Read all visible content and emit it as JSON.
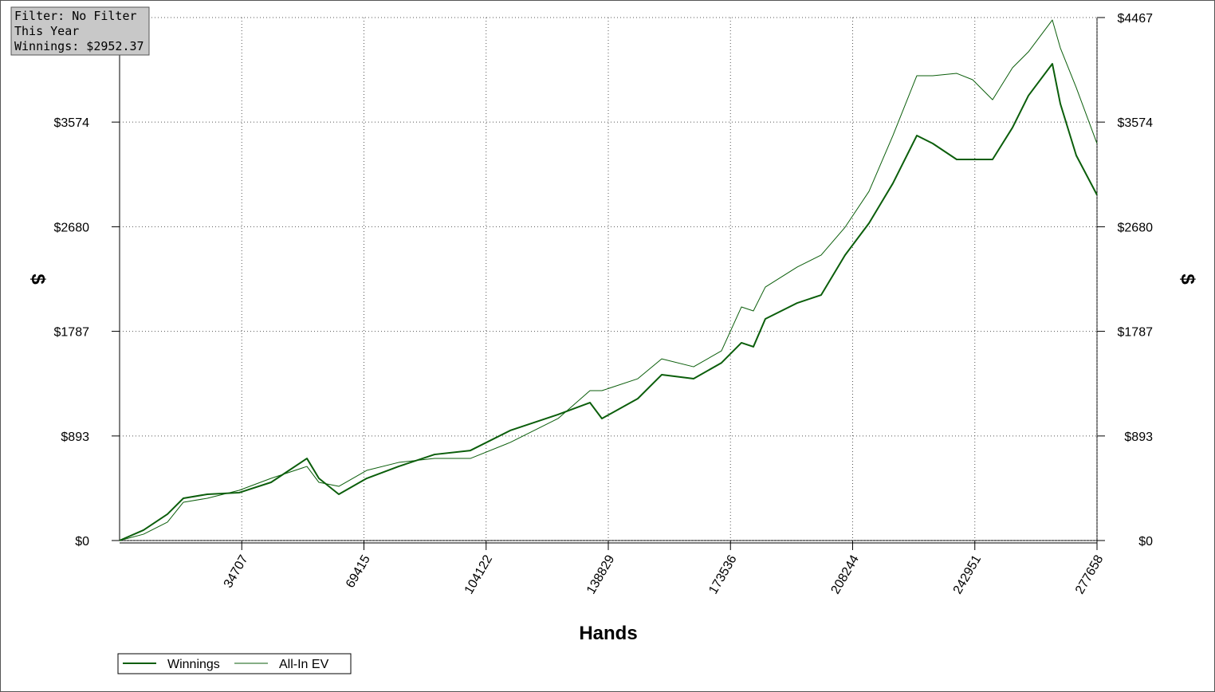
{
  "chart_data": {
    "type": "line",
    "annotations": [
      "Filter: No Filter",
      "This Year",
      "Winnings: $2952.37"
    ],
    "x_label": "Hands",
    "y_label": "$",
    "xlim": [
      0,
      277658
    ],
    "xticks": [
      34707,
      69415,
      104122,
      138829,
      173536,
      208244,
      242951,
      277658
    ],
    "ylim": [
      0,
      4467
    ],
    "yticks": [
      {
        "value": 0,
        "label": "$0"
      },
      {
        "value": 893,
        "label": "$893"
      },
      {
        "value": 1787,
        "label": "$1787"
      },
      {
        "value": 2680,
        "label": "$2680"
      },
      {
        "value": 3574,
        "label": "$3574"
      },
      {
        "value": 4467,
        "label": "$4467"
      }
    ],
    "grid": true,
    "legend": "bottom-left",
    "x": [
      0,
      6794,
      13588,
      18118,
      24912,
      33971,
      43029,
      53220,
      56618,
      62279,
      70206,
      79265,
      89456,
      99647,
      110971,
      124559,
      133618,
      137015,
      147206,
      154000,
      163059,
      170985,
      176647,
      180044,
      183441,
      192500,
      199294,
      206088,
      212882,
      219676,
      226471,
      231000,
      237794,
      242324,
      247985,
      253647,
      258176,
      264971,
      267235,
      271765,
      277658
    ],
    "series": [
      {
        "name": "Winnings",
        "color": "#0b5e0b",
        "values": [
          0,
          89,
          225,
          361,
          395,
          409,
          497,
          701,
          531,
          395,
          531,
          633,
          735,
          769,
          940,
          1076,
          1178,
          1042,
          1212,
          1416,
          1382,
          1518,
          1689,
          1655,
          1893,
          2029,
          2097,
          2438,
          2710,
          3051,
          3459,
          3391,
          3255,
          3255,
          3255,
          3527,
          3800,
          4072,
          3731,
          3289,
          2952
        ]
      },
      {
        "name": "All-In EV",
        "color": "#0b5e0b",
        "values": [
          0,
          54,
          157,
          327,
          361,
          429,
          531,
          633,
          497,
          463,
          599,
          667,
          701,
          701,
          838,
          1042,
          1280,
          1280,
          1382,
          1552,
          1484,
          1620,
          1995,
          1961,
          2165,
          2336,
          2438,
          2676,
          2982,
          3459,
          3970,
          3970,
          3990,
          3936,
          3765,
          4038,
          4174,
          4446,
          4208,
          3868,
          3391
        ]
      }
    ]
  }
}
